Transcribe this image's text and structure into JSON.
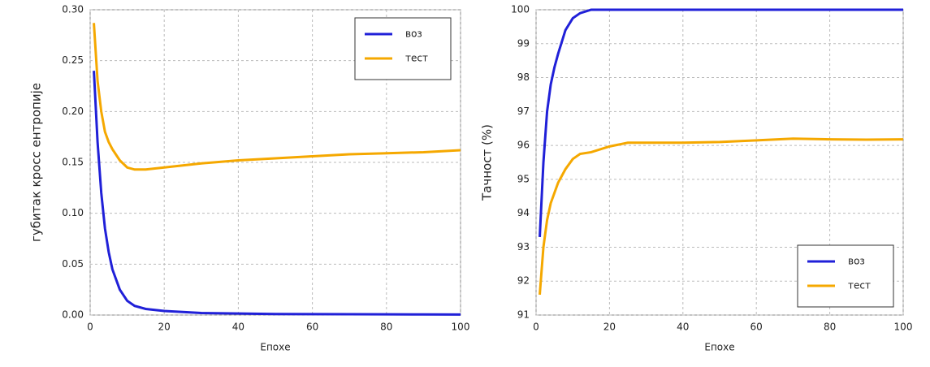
{
  "chart_data": [
    {
      "type": "line",
      "xlabel": "Епохе",
      "ylabel": "губитак кросс ентропије",
      "x": [
        1,
        2,
        3,
        4,
        5,
        6,
        8,
        10,
        12,
        15,
        20,
        25,
        30,
        40,
        50,
        60,
        70,
        80,
        90,
        100
      ],
      "series": [
        {
          "name": "воз",
          "color": "#2020d8",
          "values": [
            0.24,
            0.17,
            0.12,
            0.085,
            0.062,
            0.045,
            0.025,
            0.014,
            0.009,
            0.006,
            0.004,
            0.003,
            0.002,
            0.0015,
            0.001,
            0.0009,
            0.0008,
            0.0007,
            0.0006,
            0.0005
          ]
        },
        {
          "name": "тест",
          "color": "#f5a800",
          "values": [
            0.287,
            0.23,
            0.2,
            0.18,
            0.17,
            0.163,
            0.152,
            0.145,
            0.143,
            0.143,
            0.145,
            0.147,
            0.149,
            0.152,
            0.154,
            0.156,
            0.158,
            0.159,
            0.16,
            0.162
          ]
        }
      ],
      "xlim": [
        0,
        100
      ],
      "xticks": [
        0,
        20,
        40,
        60,
        80,
        100
      ],
      "ylim": [
        0,
        0.3
      ],
      "yticks": [
        {
          "value": 0,
          "label": "0.00"
        },
        0.05,
        {
          "value": 0.1,
          "label": "0.10"
        },
        0.15,
        {
          "value": 0.2,
          "label": "0.20"
        },
        0.25,
        {
          "value": 0.3,
          "label": "0.30"
        }
      ],
      "grid": true,
      "legend": "upper right"
    },
    {
      "type": "line",
      "xlabel": "Епохе",
      "ylabel": "Тачност (%)",
      "x": [
        1,
        2,
        3,
        4,
        5,
        6,
        8,
        10,
        12,
        15,
        20,
        25,
        30,
        40,
        50,
        60,
        70,
        80,
        90,
        100
      ],
      "series": [
        {
          "name": "воз",
          "color": "#2020d8",
          "values": [
            93.3,
            95.5,
            97,
            97.8,
            98.3,
            98.7,
            99.4,
            99.75,
            99.9,
            100,
            100,
            100,
            100,
            100,
            100,
            100,
            100,
            100,
            100,
            100
          ]
        },
        {
          "name": "тест",
          "color": "#f5a800",
          "values": [
            91.6,
            93,
            93.8,
            94.3,
            94.6,
            94.9,
            95.3,
            95.6,
            95.75,
            95.8,
            95.97,
            96.08,
            96.08,
            96.08,
            96.1,
            96.15,
            96.2,
            96.18,
            96.17,
            96.18
          ]
        }
      ],
      "xlim": [
        0,
        100
      ],
      "xticks": [
        0,
        20,
        40,
        60,
        80,
        100
      ],
      "ylim": [
        91,
        100
      ],
      "yticks": [
        91,
        92,
        93,
        94,
        95,
        96,
        97,
        98,
        99,
        100
      ],
      "grid": true,
      "legend": "lower right"
    }
  ]
}
